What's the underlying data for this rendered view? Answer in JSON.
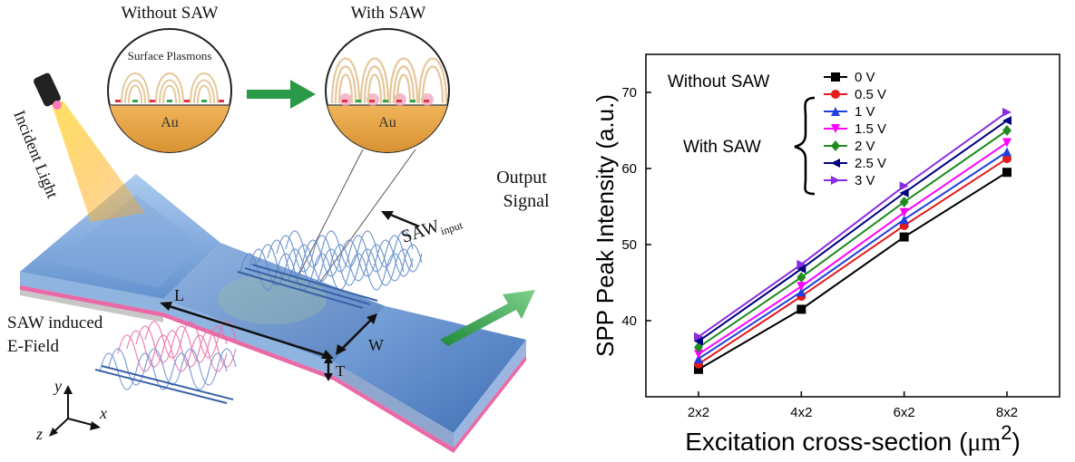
{
  "schematic": {
    "inset_left_title": "Without SAW",
    "inset_right_title": "With SAW",
    "inset_plasmon_label": "Surface Plasmons",
    "inset_left_substrate": "Au",
    "inset_right_substrate": "Au",
    "incident_light": "Incident Light",
    "saw_input": "SAW",
    "saw_input_sub": "input",
    "output_signal_line1": "Output",
    "output_signal_line2": "Signal",
    "saw_field_line1": "SAW induced",
    "saw_field_line2": "E-Field",
    "dim_L": "L",
    "dim_W": "W",
    "dim_T": "T",
    "axis_x": "x",
    "axis_y": "y",
    "axis_z": "z",
    "colors": {
      "waveguide": "#6b9fd4",
      "gold": "#e2a048",
      "arrow_green": "#2e9e4a",
      "saw_blue": "#4f7fc4",
      "saw_pink": "#e86aa6"
    }
  },
  "chart_data": {
    "type": "line",
    "xlabel_main": "Excitation cross-section (",
    "xlabel_unit": "μm",
    "xlabel_sup": "2",
    "xlabel_close": ")",
    "ylabel": "SPP Peak Intensity (a.u.)",
    "categories": [
      "2x2",
      "4x2",
      "6x2",
      "8x2"
    ],
    "ylim": [
      30,
      75
    ],
    "yticks": [
      40,
      50,
      60,
      70
    ],
    "legend_without": "Without SAW",
    "legend_with": "With SAW",
    "series": [
      {
        "name": "0 V",
        "color": "#000000",
        "marker": "square",
        "values": [
          33.6,
          41.5,
          51.0,
          59.5
        ]
      },
      {
        "name": "0.5 V",
        "color": "#e41a1c",
        "marker": "circle",
        "values": [
          34.3,
          43.2,
          52.5,
          61.3
        ]
      },
      {
        "name": "1 V",
        "color": "#1f3fe0",
        "marker": "triangle-up",
        "values": [
          35.0,
          43.8,
          53.3,
          62.2
        ]
      },
      {
        "name": "1.5 V",
        "color": "#ff00ff",
        "marker": "triangle-down",
        "values": [
          35.6,
          44.5,
          54.2,
          63.4
        ]
      },
      {
        "name": "2 V",
        "color": "#1f8a1f",
        "marker": "diamond",
        "values": [
          36.5,
          45.7,
          55.6,
          65.0
        ]
      },
      {
        "name": "2.5 V",
        "color": "#000080",
        "marker": "triangle-left",
        "values": [
          37.3,
          46.8,
          56.8,
          66.3
        ]
      },
      {
        "name": "3 V",
        "color": "#8a2be2",
        "marker": "triangle-right",
        "values": [
          37.9,
          47.4,
          57.7,
          67.4
        ]
      }
    ]
  }
}
